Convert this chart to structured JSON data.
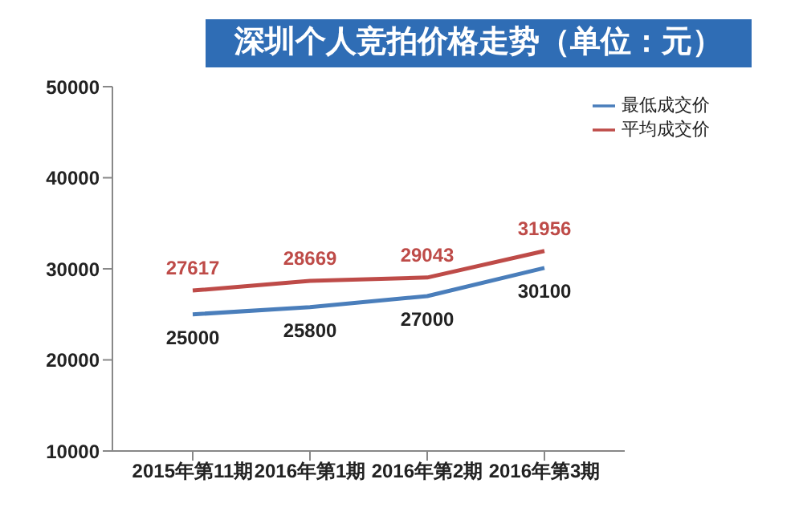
{
  "chart_data": {
    "type": "line",
    "title": "深圳个人竞拍价格走势（单位：元）",
    "categories": [
      "2015年第11期",
      "2016年第1期",
      "2016年第2期",
      "2016年第3期"
    ],
    "series": [
      {
        "name": "最低成交价",
        "color": "#4a7ebb",
        "values": [
          25000,
          25800,
          27000,
          30100
        ]
      },
      {
        "name": "平均成交价",
        "color": "#be4b48",
        "values": [
          27617,
          28669,
          29043,
          31956
        ]
      }
    ],
    "ylim": [
      10000,
      50000
    ],
    "yticks": [
      10000,
      20000,
      30000,
      40000,
      50000
    ],
    "grid": false,
    "legend": "top right",
    "data_labels": true,
    "marker": "none",
    "line_style": "solid"
  }
}
